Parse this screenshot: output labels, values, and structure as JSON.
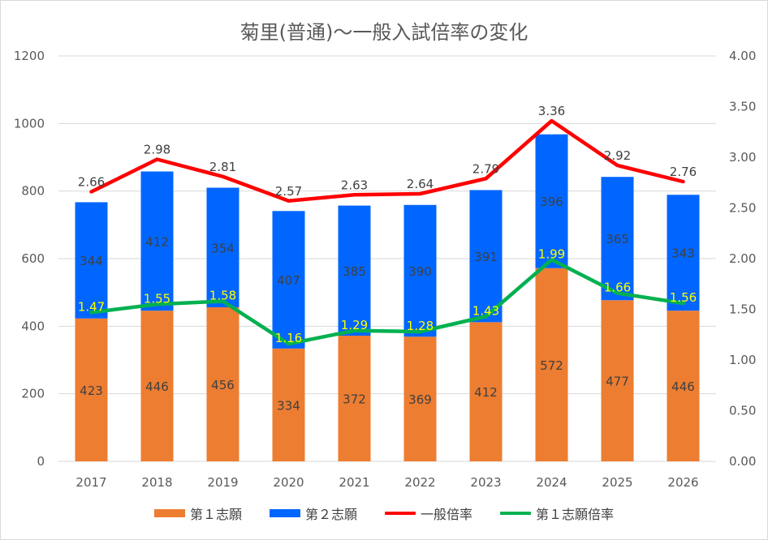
{
  "chart_data": {
    "type": "bar",
    "title": "菊里(普通)～一般入試倍率の変化",
    "categories": [
      "2017",
      "2018",
      "2019",
      "2020",
      "2021",
      "2022",
      "2023",
      "2024",
      "2025",
      "2026"
    ],
    "series": [
      {
        "name": "第１志願",
        "kind": "bar",
        "axis": "left",
        "color": "#ed7d31",
        "values": [
          423,
          446,
          456,
          334,
          372,
          369,
          412,
          572,
          477,
          446
        ]
      },
      {
        "name": "第２志願",
        "kind": "bar",
        "axis": "left",
        "color": "#0066ff",
        "values": [
          344,
          412,
          354,
          407,
          385,
          390,
          391,
          396,
          365,
          343
        ]
      },
      {
        "name": "一般倍率",
        "kind": "line",
        "axis": "right",
        "color": "#ff0000",
        "values": [
          2.66,
          2.98,
          2.81,
          2.57,
          2.63,
          2.64,
          2.79,
          3.36,
          2.92,
          2.76
        ]
      },
      {
        "name": "第１志願倍率",
        "kind": "line",
        "axis": "right",
        "color": "#00b050",
        "values": [
          1.47,
          1.55,
          1.58,
          1.16,
          1.29,
          1.28,
          1.43,
          1.99,
          1.66,
          1.56
        ]
      }
    ],
    "stacked": true,
    "ylim": [
      0,
      1200
    ],
    "ylim_right": [
      0,
      4.0
    ],
    "yticks_left": [
      "0",
      "200",
      "400",
      "600",
      "800",
      "1000",
      "1200"
    ],
    "yticks_right": [
      "0.00",
      "0.50",
      "1.00",
      "1.50",
      "2.00",
      "2.50",
      "3.00",
      "3.50",
      "4.00"
    ],
    "grid": true,
    "legend": "bottom"
  }
}
